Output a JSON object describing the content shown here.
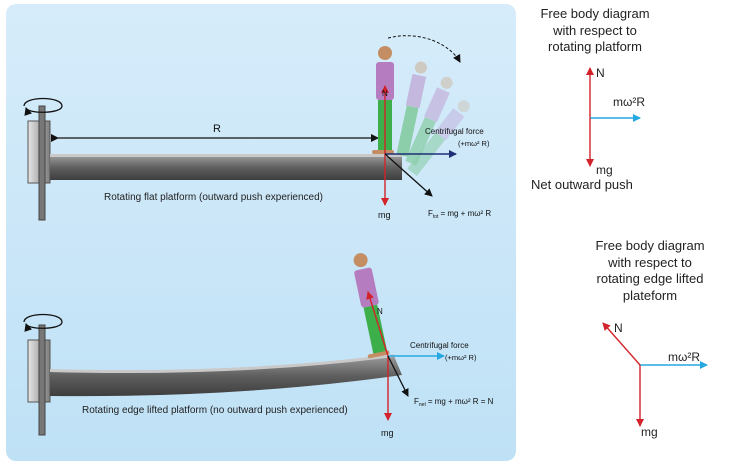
{
  "top": {
    "distance_label": "R",
    "centrifugal_label": "Centrifugal force",
    "centrifugal_expr": "(+mω² R)",
    "normal_label": "N",
    "weight_label": "mg",
    "total_label": "F = mg + mω² R",
    "total_sub": "tot",
    "caption": "Rotating flat platform (outward push experienced)"
  },
  "bottom": {
    "centrifugal_label": "Centrifugal force",
    "centrifugal_expr": "(+mω² R)",
    "normal_label": "N",
    "weight_label": "mg",
    "net_label": "F = mg + mω² R = N",
    "net_sub": "net",
    "caption": "Rotating edge lifted platform (no outward push experienced)"
  },
  "fbd1": {
    "title_lines": [
      "Free body diagram",
      "with respect to",
      "rotating platform"
    ],
    "normal_label": "N",
    "centrifugal_label": "mω²R",
    "weight_label": "mg",
    "caption": "Net outward push"
  },
  "fbd2": {
    "title_lines": [
      "Free body diagram",
      "with respect to",
      "rotating edge lifted",
      "plateform"
    ],
    "normal_label": "N",
    "centrifugal_label": "mω²R",
    "weight_label": "mg"
  },
  "colors": {
    "panel": "#cfe8f8",
    "force_red": "#d2232a",
    "force_cyan": "#26a9e0",
    "force_navy": "#1f2f78",
    "platform": "#6f6f6f",
    "shirt": "#b57cc0",
    "pants": "#3cae4a"
  }
}
